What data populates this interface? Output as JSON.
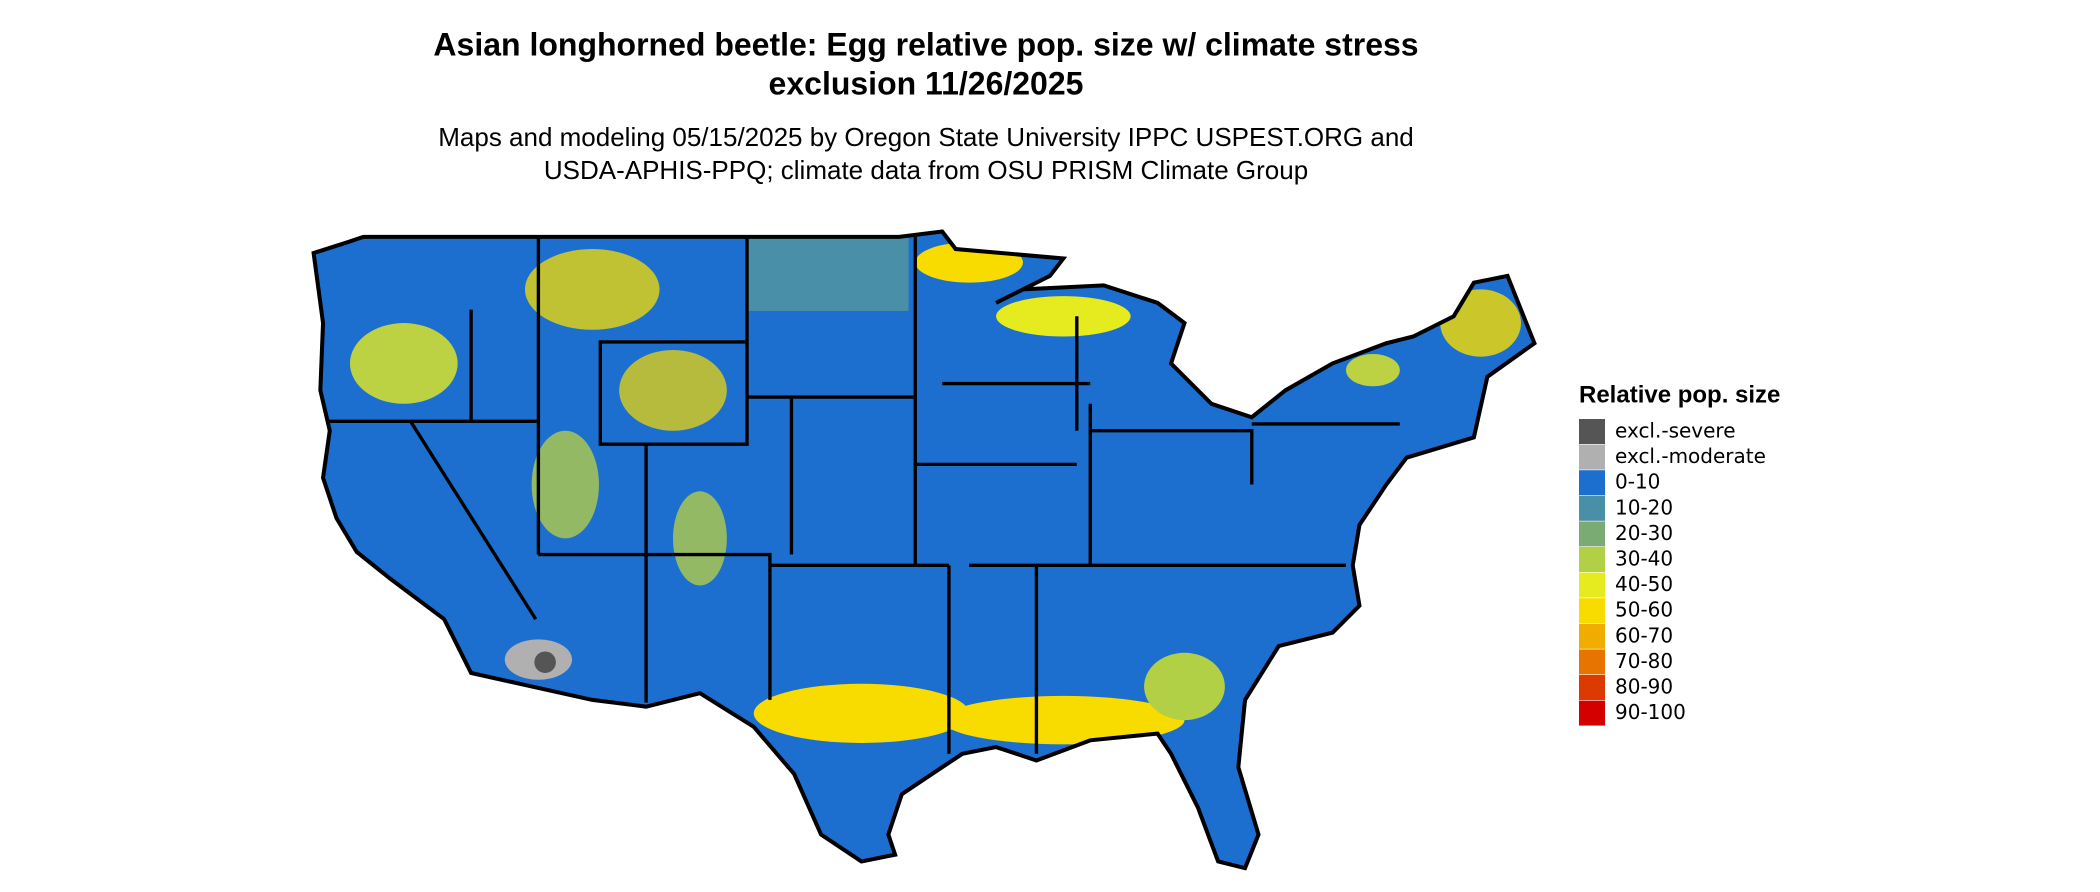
{
  "title": [
    "Asian longhorned beetle: Egg relative pop. size w/ climate stress",
    "exclusion 11/26/2025"
  ],
  "subtitle": [
    "Maps and modeling 05/15/2025 by Oregon State University IPPC USPEST.ORG and",
    "USDA-APHIS-PPQ; climate data from OSU PRISM Climate Group"
  ],
  "legend": {
    "title": "Relative pop. size",
    "items": [
      {
        "label": "excl.-severe",
        "color": "#555555"
      },
      {
        "label": "excl.-moderate",
        "color": "#b0b0b0"
      },
      {
        "label": "0-10",
        "color": "#1c6fcf"
      },
      {
        "label": "10-20",
        "color": "#4a8fa8"
      },
      {
        "label": "20-30",
        "color": "#7aab72"
      },
      {
        "label": "30-40",
        "color": "#b2d046"
      },
      {
        "label": "40-50",
        "color": "#e5eb1e"
      },
      {
        "label": "50-60",
        "color": "#f8dc00"
      },
      {
        "label": "60-70",
        "color": "#f0ac00"
      },
      {
        "label": "70-80",
        "color": "#e87400"
      },
      {
        "label": "80-90",
        "color": "#dc3a00"
      },
      {
        "label": "90-100",
        "color": "#d40000"
      }
    ]
  }
}
